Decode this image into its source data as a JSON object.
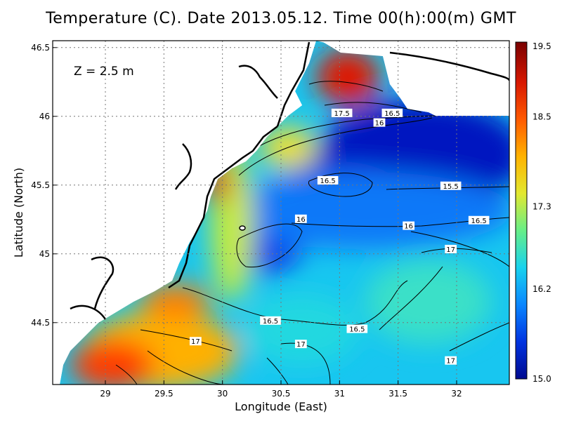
{
  "chart_data": {
    "type": "heatmap",
    "title": "Temperature (C). Date 2013.05.12. Time 00(h):00(m) GMT",
    "xlabel": "Longitude (East)",
    "ylabel": "Latitude (North)",
    "annotation": "Z  =  2.5  m",
    "xlim": [
      28.55,
      32.45
    ],
    "ylim": [
      44.05,
      46.55
    ],
    "x_ticks": [
      "29",
      "29.5",
      "30",
      "30.5",
      "31",
      "31.5",
      "32"
    ],
    "y_ticks": [
      "44.5",
      "45",
      "45.5",
      "46",
      "46.5"
    ],
    "grid": true,
    "colorbar": {
      "min": 15.0,
      "max": 19.5,
      "tick_labels": [
        "15.0",
        "16.2",
        "17.3",
        "18.5",
        "19.5"
      ],
      "colors": [
        "#000a8f",
        "#0033e0",
        "#0a86ff",
        "#18d2ee",
        "#66ee88",
        "#e2e830",
        "#ffb300",
        "#ff5a00",
        "#d81800",
        "#7a0000"
      ]
    },
    "contour_labels": [
      {
        "value": "17.5",
        "lon": 31.02,
        "lat": 46.02
      },
      {
        "value": "16.5",
        "lon": 31.45,
        "lat": 46.02
      },
      {
        "value": "16",
        "lon": 31.34,
        "lat": 45.95
      },
      {
        "value": "16.5",
        "lon": 30.9,
        "lat": 45.53
      },
      {
        "value": "15.5",
        "lon": 31.95,
        "lat": 45.49
      },
      {
        "value": "16",
        "lon": 30.67,
        "lat": 45.25
      },
      {
        "value": "16",
        "lon": 31.59,
        "lat": 45.2
      },
      {
        "value": "16.5",
        "lon": 32.19,
        "lat": 45.24
      },
      {
        "value": "17",
        "lon": 31.95,
        "lat": 45.03
      },
      {
        "value": "16.5",
        "lon": 30.41,
        "lat": 44.51
      },
      {
        "value": "16.5",
        "lon": 31.15,
        "lat": 44.45
      },
      {
        "value": "17",
        "lon": 29.77,
        "lat": 44.36
      },
      {
        "value": "17",
        "lon": 30.67,
        "lat": 44.34
      },
      {
        "value": "17",
        "lon": 31.95,
        "lat": 44.22
      }
    ]
  }
}
